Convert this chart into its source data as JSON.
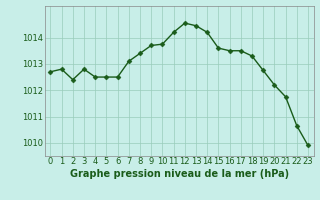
{
  "x": [
    0,
    1,
    2,
    3,
    4,
    5,
    6,
    7,
    8,
    9,
    10,
    11,
    12,
    13,
    14,
    15,
    16,
    17,
    18,
    19,
    20,
    21,
    22,
    23
  ],
  "y": [
    1012.7,
    1012.8,
    1012.4,
    1012.8,
    1012.5,
    1012.5,
    1012.5,
    1013.1,
    1013.4,
    1013.7,
    1013.75,
    1014.2,
    1014.55,
    1014.45,
    1014.2,
    1013.6,
    1013.5,
    1013.5,
    1013.3,
    1012.75,
    1012.2,
    1011.75,
    1010.65,
    1009.9
  ],
  "xlabel": "Graphe pression niveau de la mer (hPa)",
  "ylim": [
    1009.5,
    1015.2
  ],
  "yticks": [
    1010,
    1011,
    1012,
    1013,
    1014
  ],
  "xticks": [
    0,
    1,
    2,
    3,
    4,
    5,
    6,
    7,
    8,
    9,
    10,
    11,
    12,
    13,
    14,
    15,
    16,
    17,
    18,
    19,
    20,
    21,
    22,
    23
  ],
  "line_color": "#1a5c1a",
  "marker_color": "#1a5c1a",
  "bg_color": "#c8eee8",
  "grid_color": "#99ccbb",
  "xlabel_fontsize": 7,
  "tick_fontsize": 6,
  "line_width": 1.0,
  "marker_size": 2.5
}
